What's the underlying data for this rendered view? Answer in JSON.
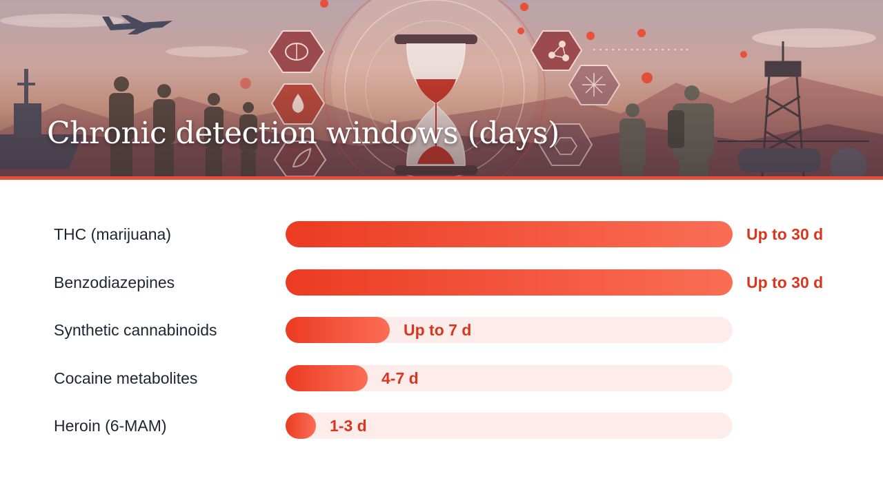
{
  "header": {
    "title": "Chronic detection windows (days)"
  },
  "colors": {
    "accent": "#e8503a",
    "bar_start": "#ec3b22",
    "bar_end": "#fb6d55",
    "track": "#fdecea",
    "label_text": "#1f2433",
    "value_text": "#d8361f"
  },
  "icons": [
    "brain-icon",
    "drop-icon",
    "leaf-icon",
    "molecule-icon",
    "network-icon",
    "starburst-icon",
    "hexagon-molecule-icon",
    "hourglass-icon"
  ],
  "chart_data": {
    "type": "bar",
    "orientation": "horizontal",
    "title": "Chronic detection windows (days)",
    "categories": [
      "THC (marijuana)",
      "Benzodiazepines",
      "Synthetic cannabinoids",
      "Cocaine metabolites",
      "Heroin (6-MAM)"
    ],
    "values": [
      30,
      30,
      7,
      5.5,
      2
    ],
    "value_labels": [
      "Up to 30 d",
      "Up to 30 d",
      "Up to 7 d",
      "4-7 d",
      "1-3 d"
    ],
    "xlim": [
      0,
      30
    ],
    "grid": false,
    "legend": "none"
  }
}
